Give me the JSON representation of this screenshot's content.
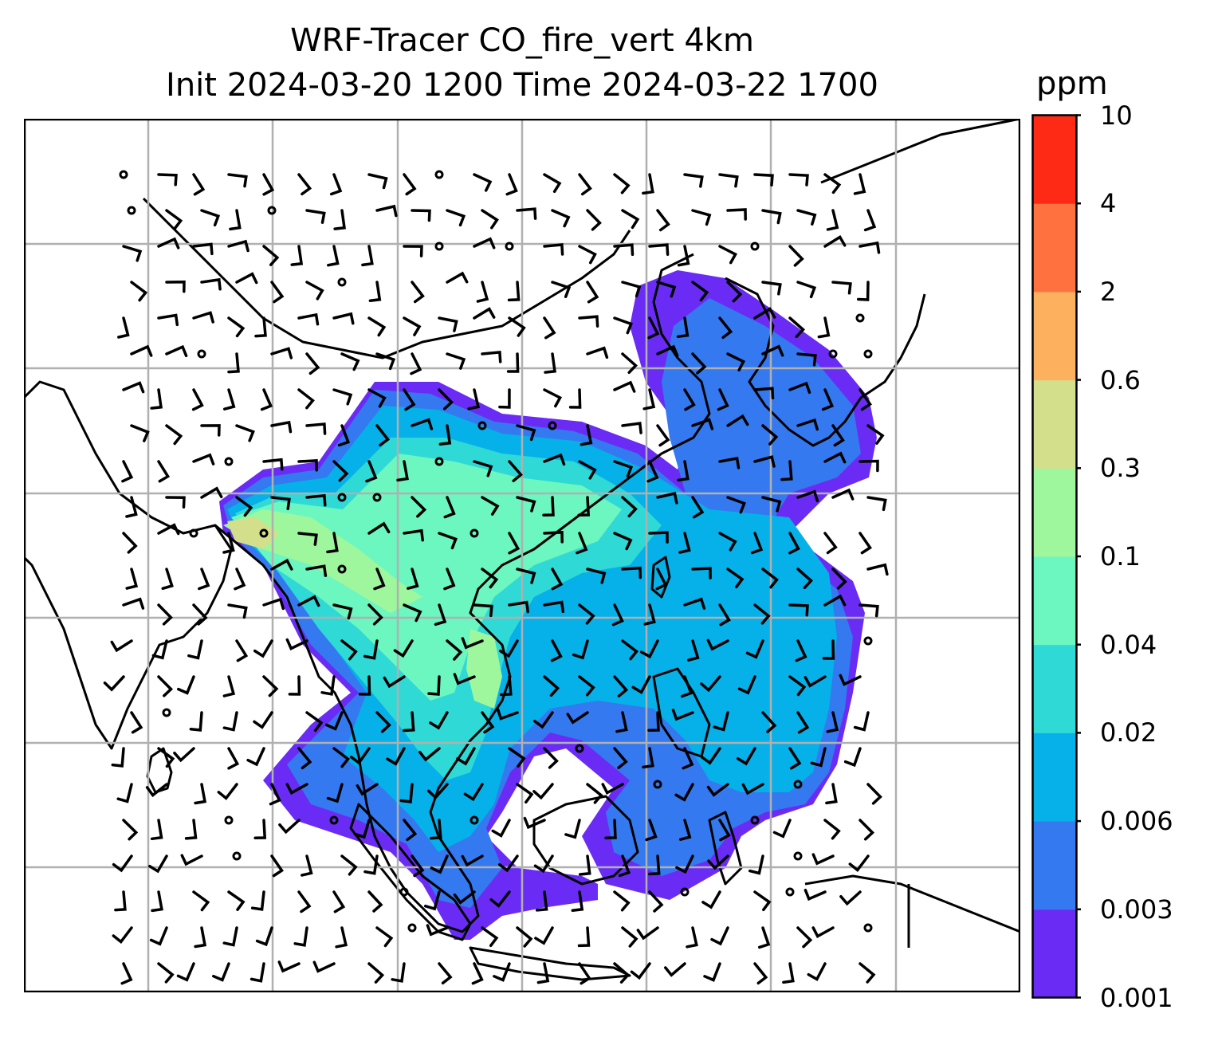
{
  "title": {
    "line1": "WRF-Tracer CO_fire_vert 4km",
    "line2": "Init 2024-03-20 1200 Time 2024-03-22 1700"
  },
  "colorbar": {
    "unit": "ppm",
    "ticks": [
      "0.001",
      "0.003",
      "0.006",
      "0.02",
      "0.04",
      "0.1",
      "0.3",
      "0.6",
      "2",
      "4",
      "10"
    ],
    "colors": [
      "#6a2cf5",
      "#3479f0",
      "#06b0e8",
      "#2fd9d6",
      "#6cf6c0",
      "#9ef79c",
      "#d3df8a",
      "#fdb15f",
      "#ff7240",
      "#ff2a16"
    ]
  },
  "map": {
    "coastline_color": "#000000",
    "grid_color": "#b0b0b0",
    "barb_color": "#000000"
  }
}
